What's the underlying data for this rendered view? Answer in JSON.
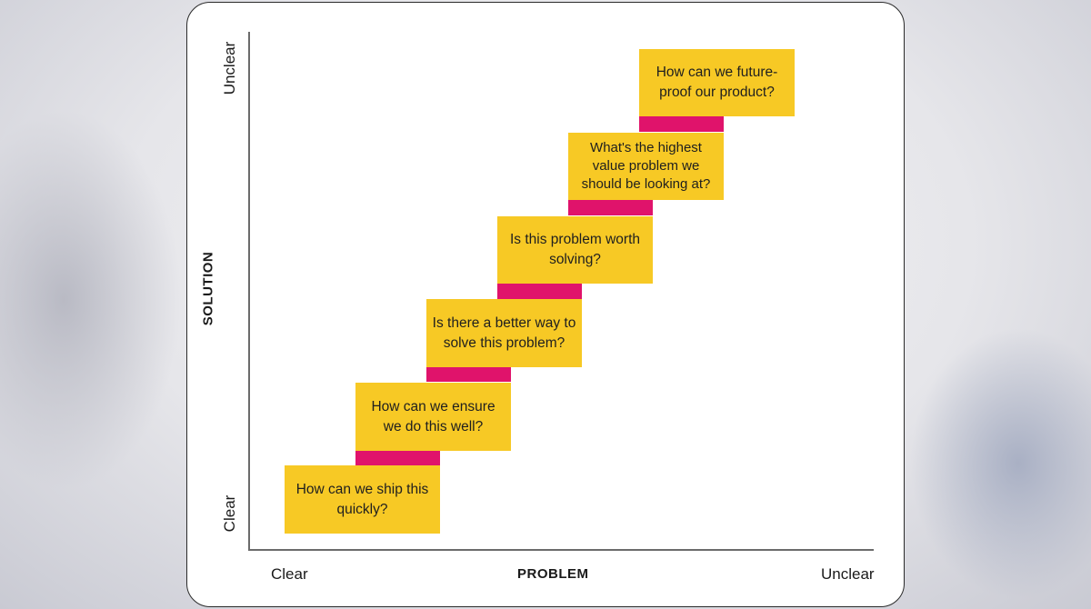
{
  "diagram": {
    "y_axis": {
      "title": "SOLUTION",
      "low": "Clear",
      "high": "Unclear"
    },
    "x_axis": {
      "title": "PROBLEM",
      "low": "Clear",
      "high": "Unclear"
    },
    "notes": [
      "How can we ship this quickly?",
      "How can we ensure we do this well?",
      "Is there a better way to solve this problem?",
      "Is this problem worth solving?",
      "What's the highest value problem we should be looking at?",
      "How can we future-proof our product?"
    ],
    "colors": {
      "note": "#f7c925",
      "step": "#e0136b",
      "axis": "#6b6b6b"
    }
  }
}
